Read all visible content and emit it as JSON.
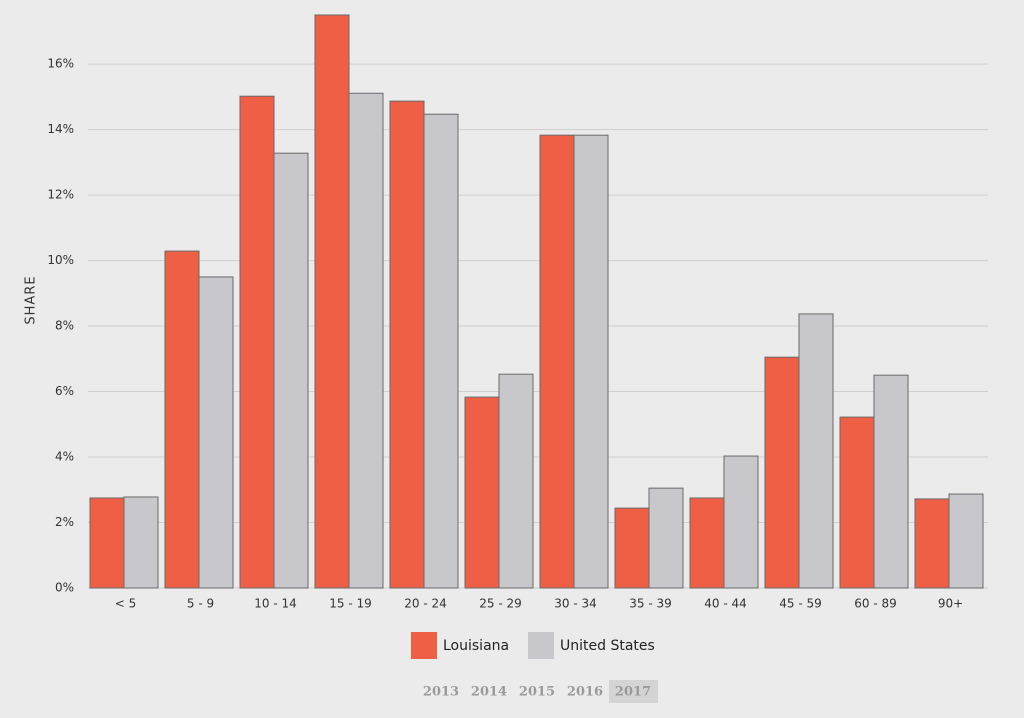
{
  "chart_data": {
    "type": "bar",
    "y_label": "SHARE",
    "categories": [
      "< 5",
      "5 - 9",
      "10 - 14",
      "15 - 19",
      "20 - 24",
      "25 - 29",
      "30 - 34",
      "35 - 39",
      "40 - 44",
      "45 - 59",
      "60 - 89",
      "90+"
    ],
    "series": [
      {
        "name": "Louisiana",
        "color": "#ef5f45",
        "values": [
          2.75,
          10.29,
          15.02,
          17.5,
          14.87,
          5.83,
          13.83,
          2.44,
          2.75,
          7.05,
          5.22,
          2.72
        ]
      },
      {
        "name": "United States",
        "color": "#c8c8cc",
        "values": [
          2.78,
          9.5,
          13.28,
          15.11,
          14.47,
          6.53,
          13.83,
          3.05,
          4.03,
          8.37,
          6.5,
          2.87
        ]
      }
    ],
    "ylim": [
      0,
      17.5
    ],
    "yticks": [
      {
        "value": 0,
        "label": "0%"
      },
      {
        "value": 2,
        "label": "2%"
      },
      {
        "value": 4,
        "label": "4%"
      },
      {
        "value": 6,
        "label": "6%"
      },
      {
        "value": 8,
        "label": "8%"
      },
      {
        "value": 10,
        "label": "10%"
      },
      {
        "value": 12,
        "label": "12%"
      },
      {
        "value": 14,
        "label": "14%"
      },
      {
        "value": 16,
        "label": "16%"
      }
    ],
    "grid": true
  },
  "year_selector": {
    "years": [
      "2013",
      "2014",
      "2015",
      "2016",
      "2017"
    ],
    "selected": "2017"
  }
}
